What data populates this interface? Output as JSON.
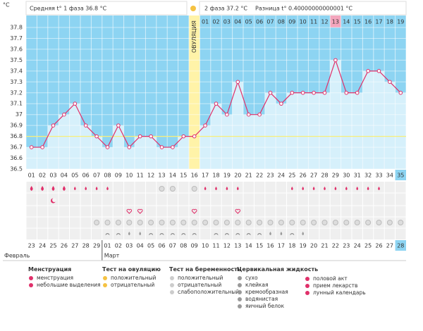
{
  "chart_data": {
    "type": "line",
    "y_label": "°C",
    "stats": [
      "Средняя t° 1 фаза 36.8 °C",
      "2 фаза 37.2 °C",
      "Разница t° 0.40000000000001 °C"
    ],
    "ovulation_label": "ОВУЛЯЦИЯ",
    "categories": [
      "01",
      "02",
      "03",
      "04",
      "05",
      "06",
      "07",
      "08",
      "09",
      "10",
      "11",
      "12",
      "13",
      "14",
      "15",
      "16",
      "17",
      "18",
      "19",
      "20",
      "21",
      "22",
      "23",
      "24",
      "25",
      "26",
      "27",
      "28",
      "29",
      "30",
      "31",
      "32",
      "33",
      "34",
      "35"
    ],
    "values": [
      36.7,
      36.7,
      36.9,
      37.0,
      37.1,
      36.9,
      36.8,
      36.7,
      36.9,
      36.7,
      36.8,
      36.8,
      36.7,
      36.7,
      36.8,
      36.8,
      36.9,
      37.1,
      37.0,
      37.3,
      37.0,
      37.0,
      37.2,
      37.1,
      37.2,
      37.2,
      37.2,
      37.2,
      37.5,
      37.2,
      37.2,
      37.4,
      37.4,
      37.3,
      37.2
    ],
    "luteal_days": [
      "01",
      "02",
      "03",
      "04",
      "05",
      "06",
      "07",
      "08",
      "09",
      "10",
      "11",
      "12",
      "13",
      "14",
      "15",
      "16",
      "17",
      "18",
      "19"
    ],
    "dates": [
      "23",
      "24",
      "25",
      "26",
      "27",
      "28",
      "29",
      "01",
      "02",
      "03",
      "04",
      "05",
      "06",
      "07",
      "08",
      "09",
      "10",
      "11",
      "12",
      "13",
      "14",
      "15",
      "16",
      "17",
      "18",
      "19",
      "20",
      "21",
      "22",
      "23",
      "24",
      "25",
      "26",
      "27",
      "28"
    ],
    "months": [
      "Февраль",
      "Март"
    ],
    "ylim": [
      36.5,
      37.8
    ],
    "yticks": [
      36.5,
      36.6,
      36.7,
      36.8,
      36.9,
      37,
      37.1,
      37.2,
      37.3,
      37.4,
      37.5,
      37.6,
      37.7,
      37.8
    ],
    "cover_line": 36.8,
    "color": "#e0306a",
    "grid": true
  },
  "legend": [
    {
      "title": "Менструация",
      "items": [
        "менструация",
        "небольшие выделения"
      ]
    },
    {
      "title": "Тест на овуляцию",
      "items": [
        "положительный",
        "отрицательный"
      ]
    },
    {
      "title": "Тест на беременность",
      "items": [
        "положительный",
        "отрицательный",
        "слабоположительный"
      ]
    },
    {
      "title": "Цервикальная жидкость",
      "items": [
        "сухо",
        "клейкая",
        "кремообразная",
        "водянистая",
        "яичный белок"
      ]
    },
    {
      "title": null,
      "items": [
        "половой акт",
        "прием лекарств",
        "лунный календарь"
      ]
    }
  ]
}
